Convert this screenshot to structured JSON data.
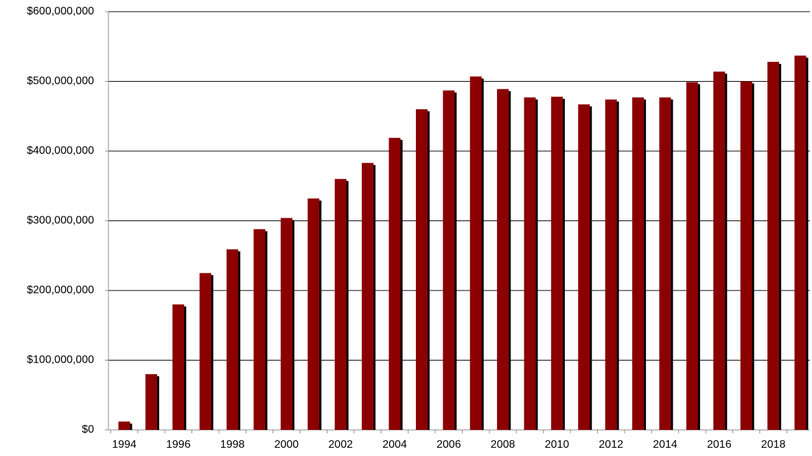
{
  "chart_data": {
    "type": "bar",
    "categories": [
      "1994",
      null,
      "1996",
      null,
      "1998",
      null,
      "2000",
      null,
      "2002",
      null,
      "2004",
      null,
      "2006",
      null,
      "2008",
      null,
      "2010",
      null,
      "2012",
      null,
      "2014",
      null,
      "2016",
      null,
      "2018",
      null
    ],
    "values": [
      12000000,
      80000000,
      180000000,
      225000000,
      259000000,
      288000000,
      304000000,
      332000000,
      360000000,
      383000000,
      419000000,
      460000000,
      487000000,
      507000000,
      489000000,
      477000000,
      478000000,
      467000000,
      474000000,
      477000000,
      477000000,
      499000000,
      514000000,
      500000000,
      528000000,
      537000000
    ],
    "color": "#8b0000",
    "ylim": [
      0,
      600000000
    ],
    "yticks": [
      {
        "value": 0,
        "label": "$0"
      },
      {
        "value": 100000000,
        "label": "$100,000,000"
      },
      {
        "value": 200000000,
        "label": "$200,000,000"
      },
      {
        "value": 300000000,
        "label": "$300,000,000"
      },
      {
        "value": 400000000,
        "label": "$400,000,000"
      },
      {
        "value": 500000000,
        "label": "$500,000,000"
      },
      {
        "value": 600000000,
        "label": "$600,000,000"
      }
    ],
    "grid": true
  }
}
